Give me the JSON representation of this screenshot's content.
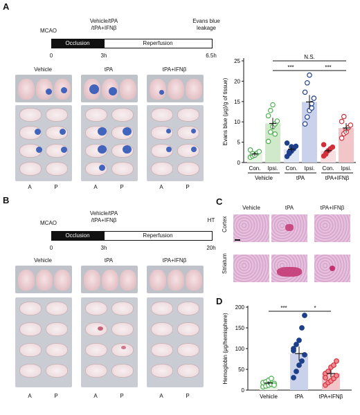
{
  "panels": {
    "A": "A",
    "B": "B",
    "C": "C",
    "D": "D"
  },
  "timelineA": {
    "mcao": "MCAO",
    "treat": [
      "Vehicle/tPA",
      "/tPA+IFNβ"
    ],
    "end": [
      "Evans blue",
      "leakage"
    ],
    "occlusion": "Occlusion",
    "reperfusion": "Reperfusion",
    "ticks": [
      "0",
      "3h",
      "6.5h"
    ]
  },
  "timelineB": {
    "mcao": "MCAO",
    "treat": [
      "Vehicle/tPA",
      "/tPA+IFNβ"
    ],
    "end": "HT",
    "occlusion": "Occlusion",
    "reperfusion": "Reperfusion",
    "ticks": [
      "0",
      "3h",
      "20h"
    ]
  },
  "groups": [
    "Vehicle",
    "tPA",
    "tPA+IFNβ"
  ],
  "ap": [
    "A",
    "P"
  ],
  "histo_rows": [
    "Cortex",
    "Striatum"
  ],
  "colors": {
    "vehicle": "#4caf50",
    "tpa": "#1e3f8a",
    "ifn": "#d32f3a",
    "blue_dye": "#2d56b8"
  },
  "chart_data": [
    {
      "type": "bar",
      "ylabel": "Evans blue (μg)/g of tissue)",
      "ylim": [
        0,
        25
      ],
      "yticks": [
        "0",
        "5",
        "10",
        "15",
        "20",
        "25"
      ],
      "categories": [
        "Con.",
        "Ipsi.",
        "Con.",
        "Ipsi.",
        "Con.",
        "Ipsi."
      ],
      "group_labels": [
        "Vehicle",
        "tPA",
        "tPA+IFNβ"
      ],
      "values": [
        2.1,
        9.6,
        3.3,
        14.9,
        2.9,
        8.5
      ],
      "errors": [
        0.5,
        1.4,
        0.6,
        1.7,
        0.5,
        1.2
      ],
      "points": [
        [
          1.3,
          1.6,
          2.0,
          2.3,
          2.7,
          3.1,
          2.2,
          1.8
        ],
        [
          5.2,
          7.5,
          8.8,
          9.5,
          10.2,
          11.5,
          12.8,
          14.2,
          7.0
        ],
        [
          1.5,
          2.2,
          2.8,
          3.4,
          4.0,
          4.8,
          2.6,
          3.9
        ],
        [
          9.5,
          11.2,
          12.8,
          14.5,
          15.8,
          17.3,
          19.6,
          21.5,
          13.4
        ],
        [
          1.6,
          2.3,
          2.9,
          3.4,
          3.8,
          4.4,
          2.1
        ],
        [
          6.0,
          7.1,
          8.0,
          8.6,
          9.2,
          10.1,
          11.3,
          7.5
        ]
      ],
      "significance": [
        {
          "label": "***"
        },
        {
          "label": "***"
        },
        {
          "label": "N.S."
        }
      ]
    },
    {
      "type": "bar",
      "ylabel": "Hemoglobin (μg/hemisphere)",
      "ylim": [
        0,
        200
      ],
      "yticks": [
        "0",
        "50",
        "100",
        "150",
        "200"
      ],
      "categories": [
        "Vehicle",
        "tPA",
        "tPA+IFNβ"
      ],
      "values": [
        17,
        88,
        40
      ],
      "errors": [
        4,
        17,
        9
      ],
      "points": [
        [
          8,
          10,
          12,
          14,
          16,
          18,
          20,
          24,
          28,
          12
        ],
        [
          30,
          45,
          60,
          70,
          85,
          100,
          110,
          120,
          150,
          180,
          95
        ],
        [
          12,
          18,
          22,
          28,
          35,
          40,
          45,
          55,
          60,
          70,
          30
        ]
      ],
      "significance": [
        {
          "label": "***"
        },
        {
          "label": "*"
        }
      ]
    }
  ]
}
